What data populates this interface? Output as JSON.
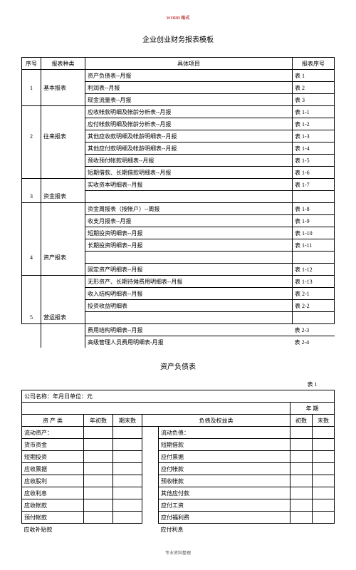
{
  "header_label": "WORD 格式",
  "title": "企业创业财务报表模板",
  "t1": {
    "headers": {
      "seq": "序号",
      "type": "报表种类",
      "item": "具体项目",
      "no": "报表序号"
    },
    "rows": [
      {
        "seq": "",
        "type": "",
        "item": "资产负债表--月报",
        "no": "表 1"
      },
      {
        "seq": "1",
        "type": "基本报表",
        "item": "利润表--月报",
        "no": "表 2"
      },
      {
        "seq": "",
        "type": "",
        "item": "现金流量表--月报",
        "no": "表 3"
      },
      {
        "seq": "",
        "type": "",
        "item": "应收帐款明细及帐龄分析表--月报",
        "no": "表 1-1"
      },
      {
        "seq": "",
        "type": "",
        "item": "应付帐款明细及帐龄分析表--月报",
        "no": "表 1-2"
      },
      {
        "seq": "2",
        "type": "往来报表",
        "item": "其他应收款明细及帐龄明细表--月报",
        "no": "表 1-3"
      },
      {
        "seq": "",
        "type": "",
        "item": "其他应付款明细及帐龄明细表--月报",
        "no": "表 1-4"
      },
      {
        "seq": "",
        "type": "",
        "item": "预收预付帐款明细表--月报",
        "no": "表 1-5"
      },
      {
        "seq": "",
        "type": "",
        "item": "短期借款、长期借款明细表--月报",
        "no": "表 1-6"
      },
      {
        "seq": "",
        "type": "",
        "item": "实收资本明细表--月报",
        "no": "表 1-7"
      },
      {
        "seq": "3",
        "type": "资金报表",
        "item": "",
        "no": ""
      },
      {
        "seq": "",
        "type": "",
        "item": "资金周报表（按帐户）--周报",
        "no": "表 1-8"
      },
      {
        "seq": "",
        "type": "",
        "item": "收支月报表--月报",
        "no": "表 1-9"
      },
      {
        "seq": "",
        "type": "",
        "item": "短期投资明细表--月报",
        "no": "表 1-10"
      },
      {
        "seq": "",
        "type": "",
        "item": "长期投资明细表--月报",
        "no": "表 1-11"
      },
      {
        "seq": "4",
        "type": "资产报表",
        "item": "",
        "no": ""
      },
      {
        "seq": "",
        "type": "",
        "item": "固定资产明细表--月报",
        "no": "表 1-12"
      },
      {
        "seq": "",
        "type": "",
        "item": "无形资产、长期待摊费用明细表--月报",
        "no": "表 1-13"
      },
      {
        "seq": "",
        "type": "",
        "item": "收入结构明细表--月报",
        "no": "表 2-1"
      },
      {
        "seq": "",
        "type": "",
        "item": "投资收益明细表",
        "no": "表 2-2"
      },
      {
        "seq": "5",
        "type": "营运报表",
        "item": "",
        "no": ""
      },
      {
        "seq": "",
        "type": "",
        "item": "费用结构明细表--月报",
        "no": "表 2-3"
      },
      {
        "seq": "",
        "type": "",
        "item": "高级管理人员费用明细表-月报",
        "no": "表 2-4"
      }
    ],
    "group_bottoms": [
      2,
      8,
      10,
      16,
      20,
      22
    ]
  },
  "subtitle": "资产负债表",
  "t2": {
    "topright": "表 1",
    "company_prefix": "公司名称：年月日单位：元",
    "date_header": "年    期",
    "headers": {
      "assets": "资 产 类",
      "begin": "年初数",
      "end": "期末数",
      "liab": "负债及权益类",
      "begin2": "初数",
      "end2": "末数"
    },
    "rows": [
      {
        "l": "流动资产：",
        "r": "流动负债：",
        "indent": true
      },
      {
        "l": "货币资金",
        "r": "短期借款"
      },
      {
        "l": "短期投资",
        "r": "应付票据"
      },
      {
        "l": "应收票据",
        "r": "应付帐款"
      },
      {
        "l": "应收股利",
        "r": "预收帐款"
      },
      {
        "l": "应收利息",
        "r": "其他应付款"
      },
      {
        "l": "应收帐款",
        "r": "应付工资"
      },
      {
        "l": "预付帐款",
        "r": "应付福利费"
      },
      {
        "l": "应收补贴款",
        "r": "应付利息",
        "noborder": true
      }
    ]
  },
  "footer": "专业资料整理"
}
